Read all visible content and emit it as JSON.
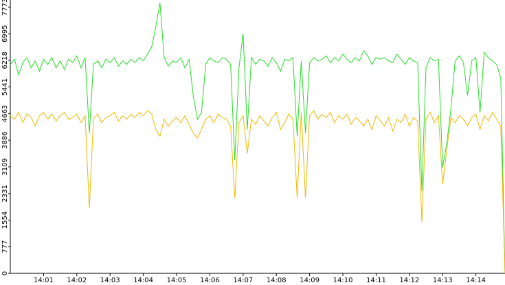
{
  "chart_data": {
    "type": "line",
    "categories": [
      null,
      null,
      null,
      null,
      null,
      null,
      null,
      null,
      "14:01",
      null,
      null,
      null,
      null,
      null,
      null,
      null,
      "14:02",
      null,
      null,
      null,
      null,
      null,
      null,
      null,
      "14:03",
      null,
      null,
      null,
      null,
      null,
      null,
      null,
      "14:04",
      null,
      null,
      null,
      null,
      null,
      null,
      null,
      "14:05",
      null,
      null,
      null,
      null,
      null,
      null,
      null,
      "14:06",
      null,
      null,
      null,
      null,
      null,
      null,
      null,
      "14:07",
      null,
      null,
      null,
      null,
      null,
      null,
      null,
      "14:08",
      null,
      null,
      null,
      null,
      null,
      null,
      null,
      "14:09",
      null,
      null,
      null,
      null,
      null,
      null,
      null,
      "14:10",
      null,
      null,
      null,
      null,
      null,
      null,
      null,
      "14:11",
      null,
      null,
      null,
      null,
      null,
      null,
      null,
      "14:12",
      null,
      null,
      null,
      null,
      null,
      null,
      null,
      "14:13",
      null,
      null,
      null,
      null,
      null,
      null,
      null,
      "14:14",
      null,
      null,
      null,
      null,
      null,
      null,
      null
    ],
    "series": [
      {
        "color": "#22dd22",
        "values": [
          6100,
          6250,
          5800,
          6150,
          6300,
          6000,
          6200,
          5900,
          6250,
          6100,
          6300,
          6000,
          6200,
          5950,
          6250,
          6150,
          6350,
          6000,
          6300,
          4100,
          6100,
          6200,
          6000,
          6250,
          6150,
          6300,
          6050,
          6200,
          6100,
          6250,
          6150,
          6300,
          6200,
          6400,
          6600,
          7200,
          7900,
          6300,
          6050,
          6200,
          6150,
          6300,
          6000,
          6250,
          5200,
          4500,
          4700,
          6100,
          6300,
          6200,
          6150,
          6300,
          6250,
          6100,
          3300,
          6000,
          7000,
          4200,
          6300,
          6100,
          6250,
          6200,
          6050,
          6300,
          6150,
          5900,
          6250,
          6200,
          6300,
          4000,
          6200,
          4100,
          6150,
          6300,
          6200,
          6250,
          6350,
          6150,
          6300,
          6200,
          6400,
          6250,
          6150,
          6300,
          6200,
          6500,
          6350,
          6100,
          6300,
          6250,
          6300,
          6200,
          6150,
          6400,
          6250,
          6100,
          6300,
          6200,
          6150,
          2400,
          6000,
          6300,
          6200,
          6250,
          3100,
          3800,
          4800,
          6200,
          6350,
          6150,
          5200,
          6200,
          6300,
          4700,
          6450,
          6300,
          6200,
          6100,
          5700,
          0
        ]
      },
      {
        "color": "#f0b800",
        "values": [
          4600,
          4500,
          4700,
          4400,
          4650,
          4550,
          4300,
          4600,
          4700,
          4500,
          4650,
          4450,
          4600,
          4700,
          4500,
          4550,
          4650,
          4400,
          4600,
          1900,
          4500,
          4650,
          4400,
          4550,
          4600,
          4700,
          4450,
          4600,
          4500,
          4650,
          4550,
          4700,
          4600,
          4750,
          4650,
          4200,
          4000,
          4500,
          4300,
          4450,
          4550,
          4400,
          4600,
          4350,
          4100,
          3950,
          4200,
          4500,
          4600,
          4400,
          4650,
          4550,
          4500,
          4300,
          2200,
          4400,
          4600,
          3500,
          4500,
          4350,
          4600,
          4450,
          4300,
          4550,
          4700,
          4200,
          4400,
          4650,
          4500,
          2200,
          4700,
          2200,
          4600,
          4750,
          4500,
          4650,
          4550,
          4700,
          4400,
          4600,
          4500,
          4650,
          4350,
          4550,
          4450,
          4300,
          4500,
          4200,
          4600,
          4450,
          4300,
          4550,
          4150,
          4500,
          4400,
          4650,
          4300,
          4550,
          4450,
          1500,
          4500,
          4700,
          4400,
          4600,
          2600,
          3600,
          4550,
          4400,
          4600,
          4500,
          4300,
          4550,
          4650,
          4200,
          4600,
          4450,
          4700,
          4500,
          4300,
          0
        ]
      }
    ],
    "ylim": [
      0,
      7980
    ],
    "yticks": [
      0,
      777,
      1554,
      2331,
      3109,
      3886,
      4663,
      5441,
      6218,
      6995,
      7773
    ]
  }
}
